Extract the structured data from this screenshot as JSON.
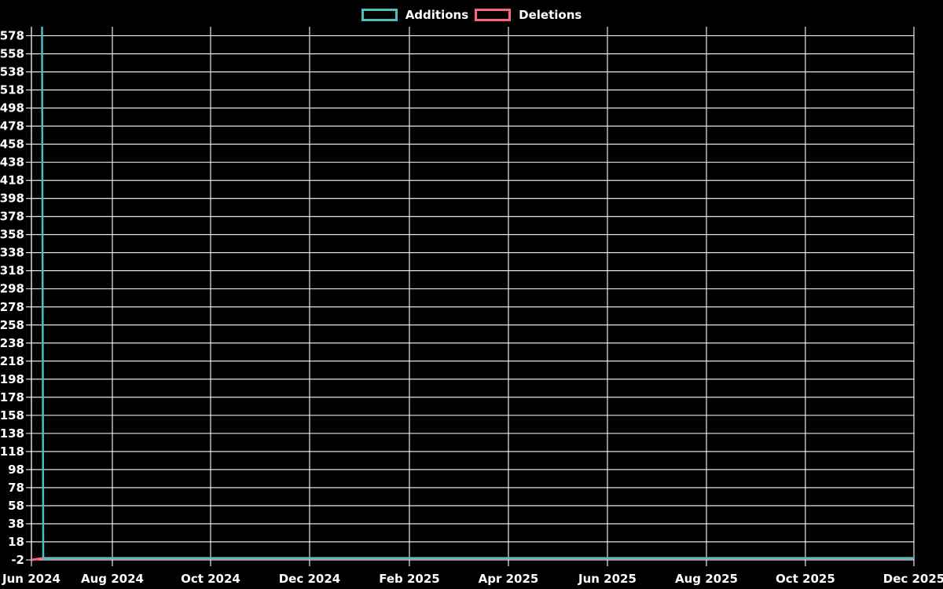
{
  "page": {
    "background": "#000000",
    "text_color": "#ffffff"
  },
  "chart_data": {
    "type": "line",
    "title": "",
    "grid": {
      "show": true,
      "color": "#ffffff"
    },
    "legend": {
      "position": "top",
      "items": [
        {
          "label": "Additions",
          "color": "#4bc0c0"
        },
        {
          "label": "Deletions",
          "color": "#ff6384"
        }
      ]
    },
    "x_axis": {
      "ticks": [
        {
          "label": "Jun 2024",
          "t": 0.0
        },
        {
          "label": "Aug 2024",
          "t": 0.0917
        },
        {
          "label": "Oct 2024",
          "t": 0.203
        },
        {
          "label": "Dec 2024",
          "t": 0.3152
        },
        {
          "label": "Feb 2025",
          "t": 0.4283
        },
        {
          "label": "Apr 2025",
          "t": 0.5405
        },
        {
          "label": "Jun 2025",
          "t": 0.6527
        },
        {
          "label": "Aug 2025",
          "t": 0.7649
        },
        {
          "label": "Oct 2025",
          "t": 0.877
        },
        {
          "label": "Dec 2025",
          "t": 1.0
        }
      ]
    },
    "y_axis": {
      "min": -2,
      "max": 588,
      "tick_step": 20,
      "tick_values": [
        -2,
        18,
        38,
        58,
        78,
        98,
        118,
        138,
        158,
        178,
        198,
        218,
        238,
        258,
        278,
        298,
        318,
        338,
        358,
        378,
        398,
        418,
        438,
        458,
        478,
        498,
        518,
        538,
        558,
        578
      ]
    },
    "series": [
      {
        "name": "Additions",
        "color": "#4bc0c0",
        "stroke_width": 2.5,
        "points": [
          {
            "t": 0.012,
            "v": 588
          },
          {
            "t": 0.0134,
            "v": 0
          },
          {
            "t": 1.0,
            "v": 0
          }
        ]
      },
      {
        "name": "Deletions",
        "color": "#ff6384",
        "stroke_width": 3,
        "points": [
          {
            "t": 0.0,
            "v": -2
          },
          {
            "t": 0.0134,
            "v": 0
          },
          {
            "t": 1.0,
            "v": 0
          }
        ]
      }
    ]
  }
}
